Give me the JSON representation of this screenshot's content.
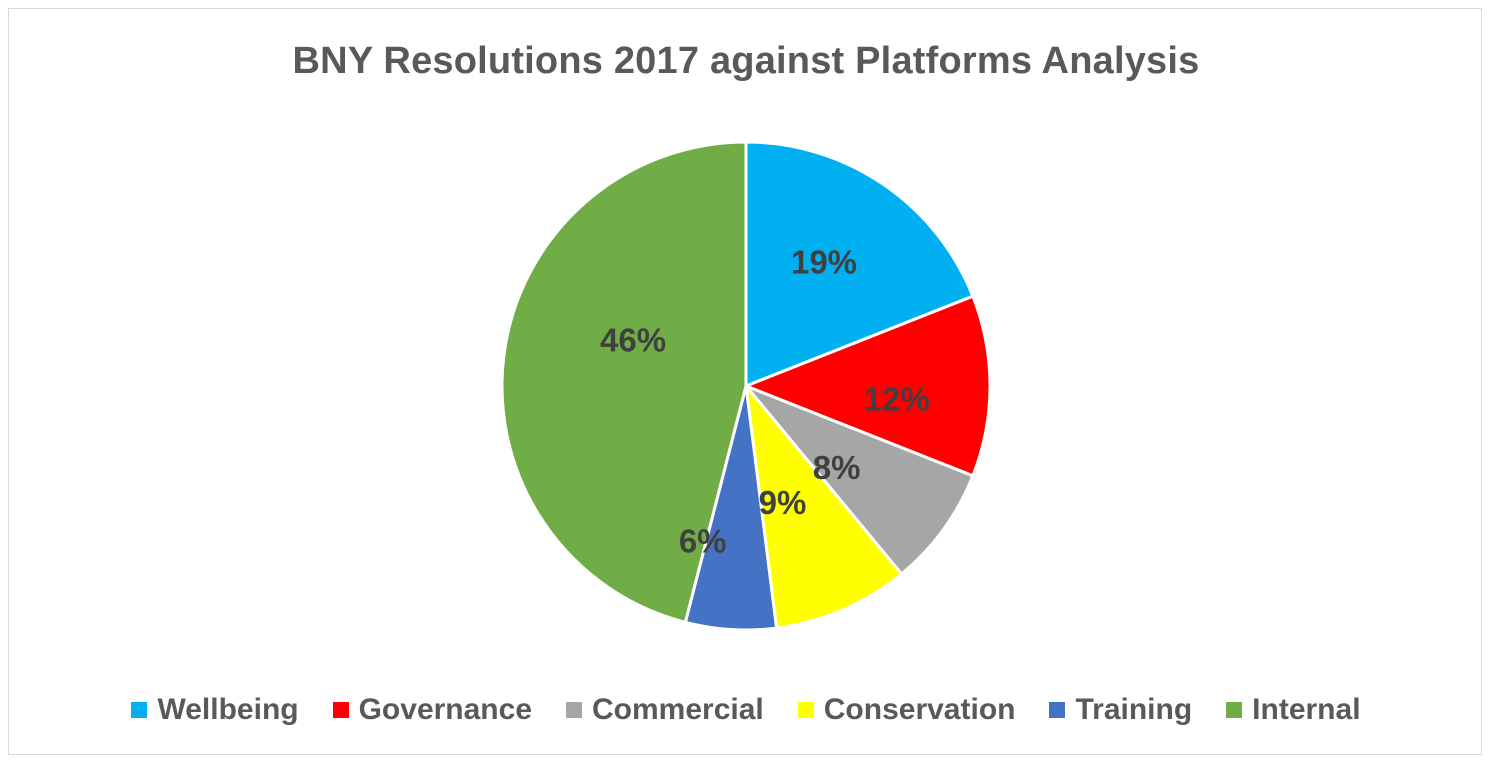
{
  "chart_data": {
    "type": "pie",
    "title": "BNY Resolutions 2017 against Platforms Analysis",
    "categories": [
      "Wellbeing",
      "Governance",
      "Commercial",
      "Conservation",
      "Training",
      "Internal"
    ],
    "values": [
      19,
      12,
      8,
      9,
      6,
      46
    ],
    "labels": [
      "19%",
      "12%",
      "8%",
      "9%",
      "6%",
      "46%"
    ],
    "colors": [
      "#00B0F0",
      "#FF0000",
      "#A6A6A6",
      "#FFFF00",
      "#4472C4",
      "#70AD47"
    ],
    "legend": "bottom",
    "start_angle": "12 o'clock",
    "direction": "clockwise"
  }
}
